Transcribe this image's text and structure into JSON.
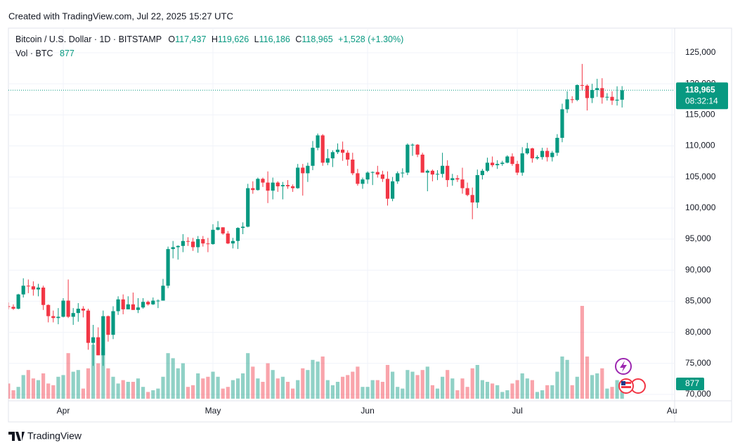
{
  "header": {
    "created": "Created with TradingView.com, Jul 22, 2025 15:27 UTC"
  },
  "legend": {
    "symbol": "Bitcoin / U.S. Dollar · 1D · BITSTAMP",
    "open_key": "O",
    "open": "117,437",
    "high_key": "H",
    "high": "119,626",
    "low_key": "L",
    "low": "116,186",
    "close_key": "C",
    "change": "+1,528 (+1.30%)",
    "volume_title": "Vol · BTC"
  },
  "footer": {
    "brand": "TradingView"
  },
  "chart_data": {
    "type": "candlestick",
    "categories": [
      null,
      null,
      null,
      null,
      null,
      null,
      null,
      null,
      null,
      null,
      null,
      "Apr",
      null,
      null,
      null,
      null,
      null,
      null,
      null,
      null,
      null,
      null,
      null,
      null,
      null,
      null,
      null,
      null,
      null,
      null,
      null,
      null,
      null,
      null,
      null,
      null,
      null,
      null,
      null,
      null,
      null,
      "May",
      null,
      null,
      null,
      null,
      null,
      null,
      null,
      null,
      null,
      null,
      null,
      null,
      null,
      null,
      null,
      null,
      null,
      null,
      null,
      null,
      null,
      null,
      null,
      null,
      null,
      null,
      null,
      null,
      null,
      null,
      "Jun",
      null,
      null,
      null,
      null,
      null,
      null,
      null,
      null,
      null,
      null,
      null,
      null,
      null,
      null,
      null,
      null,
      null,
      null,
      null,
      null,
      null,
      null,
      null,
      null,
      null,
      null,
      null,
      null,
      null,
      "Jul",
      null,
      null,
      null,
      null,
      null,
      null,
      null,
      null,
      null,
      null,
      null,
      null,
      null,
      null,
      null,
      null,
      null,
      null,
      null,
      null,
      null,
      null,
      null,
      null,
      null,
      null,
      null,
      null,
      null,
      null,
      "Au"
    ],
    "open": [
      84200,
      84100,
      83800,
      86100,
      87500,
      87400,
      86900,
      87200,
      84400,
      82600,
      82300,
      82500,
      85100,
      82500,
      83100,
      83800,
      83500,
      78300,
      79200,
      76300,
      82600,
      79600,
      83400,
      85300,
      83700,
      84500,
      83600,
      84000,
      84900,
      84500,
      85100,
      85100,
      87500,
      93400,
      93700,
      93900,
      94700,
      94600,
      93700,
      95000,
      94300,
      94200,
      96500,
      96900,
      95900,
      94300,
      94700,
      96800,
      97000,
      103200,
      102900,
      104700,
      104100,
      102800,
      104100,
      103500,
      103700,
      103500,
      103200,
      106500,
      105600,
      106800,
      109700,
      111700,
      107300,
      108000,
      109000,
      109400,
      108900,
      107800,
      105600,
      103900,
      104600,
      105700,
      105800,
      105400,
      104700,
      101500,
      104300,
      105600,
      105700,
      110200,
      110200,
      108600,
      105700,
      106000,
      105400,
      105500,
      106800,
      104500,
      104800,
      104600,
      103200,
      102100,
      100900,
      105300,
      106000,
      107300,
      106900,
      107100,
      107300,
      108300,
      107100,
      105700,
      108800,
      109600,
      108000,
      108200,
      109200,
      108200,
      108900,
      111300,
      115900,
      117500,
      117400,
      119800,
      119700,
      117700,
      119000,
      119300,
      117800,
      117900,
      117300,
      117437,
      null,
      null,
      null,
      null,
      null,
      null,
      null,
      null,
      null,
      null
    ],
    "high": [
      84800,
      84500,
      86200,
      88700,
      88500,
      88200,
      87800,
      87500,
      84500,
      83500,
      83900,
      85500,
      88500,
      83900,
      84700,
      84200,
      83800,
      81200,
      80800,
      83500,
      82700,
      84200,
      85800,
      86100,
      85800,
      86400,
      85500,
      85500,
      85100,
      85600,
      85300,
      88600,
      93800,
      94700,
      94000,
      95800,
      95300,
      95200,
      95500,
      95500,
      95200,
      97400,
      97900,
      96900,
      96300,
      95200,
      96900,
      97700,
      103900,
      104300,
      104900,
      104900,
      105900,
      104900,
      104300,
      104200,
      104500,
      103800,
      107100,
      107100,
      107300,
      110800,
      112000,
      111900,
      109500,
      109300,
      110400,
      110700,
      109300,
      108900,
      106300,
      104900,
      105900,
      105900,
      106800,
      106000,
      105900,
      105000,
      105900,
      106400,
      110400,
      110400,
      110300,
      108900,
      106200,
      106200,
      106100,
      108900,
      107700,
      105500,
      105300,
      106500,
      104100,
      103300,
      106200,
      106300,
      108100,
      108300,
      107700,
      107600,
      108500,
      108800,
      107600,
      109800,
      110500,
      109700,
      108500,
      109700,
      109700,
      109200,
      111900,
      116800,
      118800,
      118000,
      119900,
      123200,
      119900,
      120000,
      120800,
      120900,
      118500,
      118800,
      119600,
      119626,
      null,
      null,
      null,
      null,
      null,
      null,
      null,
      null,
      null,
      null
    ],
    "low": [
      83700,
      83600,
      83700,
      85600,
      86300,
      85900,
      85800,
      83600,
      81600,
      81600,
      81300,
      82400,
      82300,
      81200,
      81700,
      82400,
      77200,
      74600,
      76300,
      74600,
      78500,
      78900,
      82800,
      82900,
      83700,
      83600,
      83100,
      83800,
      84300,
      84400,
      83900,
      85100,
      87100,
      91900,
      91700,
      92900,
      93900,
      93100,
      92800,
      93800,
      92900,
      94100,
      96400,
      95700,
      94200,
      93500,
      93400,
      95800,
      96900,
      102300,
      102800,
      103400,
      100800,
      101400,
      102600,
      101400,
      103100,
      102600,
      103100,
      102000,
      104200,
      106100,
      109300,
      106800,
      106900,
      106600,
      108700,
      107600,
      106800,
      105300,
      103600,
      103100,
      103900,
      103700,
      104900,
      104200,
      100400,
      101100,
      103900,
      104900,
      105300,
      108400,
      108200,
      105700,
      102700,
      104300,
      104500,
      104900,
      103400,
      103600,
      104200,
      102300,
      101900,
      98200,
      100000,
      104600,
      105800,
      106600,
      106300,
      106800,
      107200,
      106800,
      105300,
      105200,
      108600,
      107300,
      107800,
      107800,
      107500,
      107500,
      108400,
      110600,
      115300,
      116900,
      117200,
      118900,
      115700,
      116900,
      117900,
      116800,
      117300,
      116600,
      116500,
      116186,
      null,
      null,
      null,
      null,
      null,
      null,
      null,
      null,
      null,
      null
    ],
    "close": [
      84100,
      83800,
      86100,
      87500,
      87400,
      86900,
      87200,
      84400,
      82600,
      82300,
      82500,
      85100,
      82500,
      83100,
      83800,
      83500,
      78300,
      79200,
      76300,
      82600,
      79600,
      83400,
      85300,
      83700,
      84500,
      83600,
      84000,
      84900,
      84500,
      85100,
      85100,
      87500,
      93400,
      93700,
      93900,
      94700,
      94600,
      93700,
      95000,
      94300,
      94200,
      96500,
      96900,
      95900,
      94300,
      94700,
      96800,
      97000,
      103200,
      102900,
      104700,
      104100,
      102800,
      104100,
      103500,
      103700,
      103500,
      103200,
      106500,
      105600,
      106800,
      109700,
      111700,
      107300,
      108000,
      109000,
      109400,
      108900,
      107800,
      105600,
      103900,
      104600,
      105700,
      105800,
      105400,
      104700,
      101500,
      104300,
      105600,
      105700,
      110200,
      110200,
      108600,
      105700,
      106000,
      105400,
      105500,
      106800,
      104500,
      104800,
      104600,
      103200,
      102100,
      100900,
      105300,
      106000,
      107300,
      106900,
      107100,
      107300,
      108300,
      107100,
      105700,
      108800,
      109600,
      108000,
      108200,
      109200,
      108200,
      108900,
      111300,
      115900,
      117500,
      117400,
      119800,
      119700,
      117700,
      119000,
      119300,
      117800,
      117900,
      117300,
      117437,
      118965,
      null,
      null,
      null,
      null,
      null,
      null,
      null,
      null,
      null,
      null
    ],
    "volume": [
      900,
      500,
      700,
      1400,
      1700,
      1200,
      1100,
      1500,
      900,
      800,
      1300,
      1400,
      2700,
      1600,
      1700,
      600,
      1800,
      3200,
      2100,
      3000,
      1800,
      1300,
      900,
      1100,
      1000,
      1000,
      1200,
      700,
      400,
      500,
      600,
      1300,
      2700,
      2400,
      1800,
      2100,
      700,
      800,
      1500,
      1200,
      1300,
      1600,
      1300,
      600,
      700,
      1100,
      1200,
      1500,
      2700,
      1900,
      1200,
      1000,
      2100,
      1700,
      1200,
      1300,
      1000,
      600,
      1100,
      1800,
      1700,
      2300,
      2200,
      2500,
      1100,
      800,
      1000,
      1300,
      1400,
      1600,
      1900,
      700,
      700,
      1100,
      1100,
      1000,
      2000,
      1600,
      700,
      600,
      1700,
      1600,
      1400,
      1700,
      1900,
      800,
      600,
      1300,
      1700,
      1200,
      500,
      1200,
      700,
      1800,
      2000,
      1100,
      1000,
      900,
      800,
      400,
      500,
      900,
      1100,
      1500,
      1200,
      1100,
      400,
      500,
      800,
      800,
      1600,
      2500,
      2300,
      800,
      1300,
      5500,
      2500,
      1400,
      1500,
      1800,
      600,
      700,
      1100,
      877,
      null,
      null,
      null,
      null,
      null,
      null,
      null,
      null,
      null,
      null
    ],
    "up_color": "#089981",
    "down_color": "#f23645",
    "ylim": [
      69200,
      128960
    ],
    "yticks": [
      {
        "value": 70000,
        "label": "70,000"
      },
      {
        "value": 75000,
        "label": "75,000"
      },
      {
        "value": 80000,
        "label": "80,000"
      },
      {
        "value": 85000,
        "label": "85,000"
      },
      {
        "value": 90000,
        "label": "90,000"
      },
      {
        "value": 95000,
        "label": "95,000"
      },
      {
        "value": 100000,
        "label": "100,000"
      },
      {
        "value": 105000,
        "label": "105,000"
      },
      {
        "value": 110000,
        "label": "110,000"
      },
      {
        "value": 115000,
        "label": "115,000"
      },
      {
        "value": 120000,
        "label": "120,000"
      },
      {
        "value": 125000,
        "label": "125,000"
      }
    ],
    "volume_ylim": [
      0,
      5500
    ],
    "grid": true,
    "last_price": {
      "value": 118965,
      "label": "118,965"
    },
    "countdown": "08:32:14"
  }
}
